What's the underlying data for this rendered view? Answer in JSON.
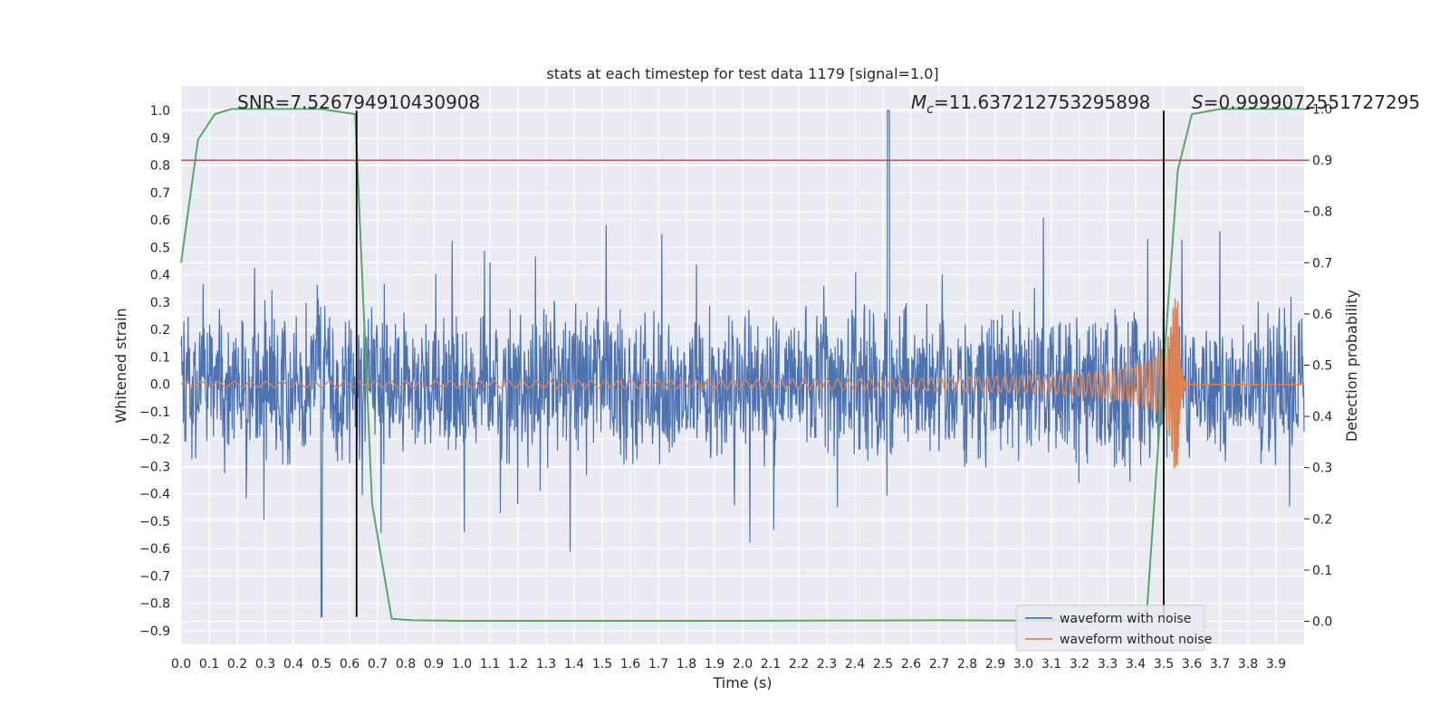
{
  "chart_data": {
    "type": "line",
    "title": "stats at each timestep for test data 1179 [signal=1.0]",
    "xlabel": "Time (s)",
    "ylabel": "Whitened strain",
    "y2label": "Detection probability",
    "xlim": [
      0.0,
      4.0
    ],
    "ylim": [
      -0.95,
      1.09
    ],
    "y2lim": [
      -0.045,
      1.045
    ],
    "x_ticks": [
      0.0,
      0.1,
      0.2,
      0.3,
      0.4,
      0.5,
      0.6,
      0.7,
      0.8,
      0.9,
      1.0,
      1.1,
      1.2,
      1.3,
      1.4,
      1.5,
      1.6,
      1.7,
      1.8,
      1.9,
      2.0,
      2.1,
      2.2,
      2.3,
      2.4,
      2.5,
      2.6,
      2.7,
      2.8,
      2.9,
      3.0,
      3.1,
      3.2,
      3.3,
      3.4,
      3.5,
      3.6,
      3.7,
      3.8,
      3.9
    ],
    "x_tick_labels": [
      "0.0",
      "0.1",
      "0.2",
      "0.3",
      "0.4",
      "0.5",
      "0.6",
      "0.7",
      "0.8",
      "0.9",
      "1.0",
      "1.1",
      "1.2",
      "1.3",
      "1.4",
      "1.5",
      "1.6",
      "1.7",
      "1.8",
      "1.9",
      "2.0",
      "2.1",
      "2.2",
      "2.3",
      "2.4",
      "2.5",
      "2.6",
      "2.7",
      "2.8",
      "2.9",
      "3.0",
      "3.1",
      "3.2",
      "3.3",
      "3.4",
      "3.5",
      "3.6",
      "3.7",
      "3.8",
      "3.9"
    ],
    "y_ticks": [
      -0.9,
      -0.8,
      -0.7,
      -0.6,
      -0.5,
      -0.4,
      -0.3,
      -0.2,
      -0.1,
      0.0,
      0.1,
      0.2,
      0.3,
      0.4,
      0.5,
      0.6,
      0.7,
      0.8,
      0.9,
      1.0
    ],
    "y_tick_labels": [
      "−0.9",
      "−0.8",
      "−0.7",
      "−0.6",
      "−0.5",
      "−0.4",
      "−0.3",
      "−0.2",
      "−0.1",
      "0.0",
      "0.1",
      "0.2",
      "0.3",
      "0.4",
      "0.5",
      "0.6",
      "0.7",
      "0.8",
      "0.9",
      "1.0"
    ],
    "y2_ticks": [
      0.0,
      0.1,
      0.2,
      0.3,
      0.4,
      0.5,
      0.6,
      0.7,
      0.8,
      0.9,
      1.0
    ],
    "y2_tick_labels": [
      "0.0",
      "0.1",
      "0.2",
      "0.3",
      "0.4",
      "0.5",
      "0.6",
      "0.7",
      "0.8",
      "0.9",
      "1.0"
    ],
    "grid": true,
    "series": [
      {
        "name": "waveform with noise",
        "axis": "left",
        "style": "noise",
        "t_start": 0.0,
        "t_end": 4.0,
        "band_low": -0.3,
        "band_high": 0.3,
        "max": 1.0,
        "min": -0.85,
        "color": "#4c72b0"
      },
      {
        "name": "waveform without noise",
        "axis": "left",
        "style": "chirp",
        "t_start": 0.0,
        "t_merger": 3.55,
        "amplitude_start": 0.01,
        "amplitude_peak": 0.32,
        "frequency_start": 17,
        "color": "#dd8452"
      },
      {
        "name": "",
        "axis": "right",
        "style": "line",
        "color": "#55a868",
        "x": [
          0.0,
          0.06,
          0.12,
          0.18,
          0.25,
          0.5,
          0.62,
          0.68,
          0.75,
          0.82,
          1.0,
          2.0,
          2.7,
          3.2,
          3.4,
          3.44,
          3.5,
          3.55,
          3.6,
          3.7,
          4.0
        ],
        "y": [
          0.7,
          0.94,
          0.99,
          1.0,
          1.0,
          1.0,
          0.99,
          0.23,
          0.005,
          0.002,
          0.001,
          0.001,
          0.002,
          0.001,
          0.001,
          0.02,
          0.5,
          0.88,
          0.99,
          1.0,
          1.0
        ]
      }
    ],
    "threshold": {
      "axis": "right",
      "value": 0.9,
      "color": "#c44e52"
    },
    "vlines": [
      {
        "x": 0.625,
        "ymin": -0.85,
        "ymax": 1.0,
        "color": "#000000"
      },
      {
        "x": 3.5,
        "ymin": -0.85,
        "ymax": 1.0,
        "color": "#000000"
      }
    ],
    "annotations": [
      {
        "prefix": "SNR=",
        "value": "7.526794910430908",
        "x": 0.2,
        "y": 1.0
      },
      {
        "prefix": "M",
        "subscript": "c",
        "suffix": "=",
        "value": "11.637212753295898",
        "x": 2.6,
        "y": 1.0
      },
      {
        "prefix": "S",
        "suffix": "=",
        "value": "0.9999072551727295",
        "x": 3.6,
        "y": 1.0
      }
    ],
    "legend": {
      "position": "lower-right",
      "entries": [
        {
          "label": "waveform with noise",
          "color": "#4c72b0"
        },
        {
          "label": "waveform without noise",
          "color": "#dd8452"
        }
      ]
    },
    "colors": {
      "plot_background": "#eaeaf2",
      "grid": "#ffffff",
      "text": "#262626"
    }
  }
}
